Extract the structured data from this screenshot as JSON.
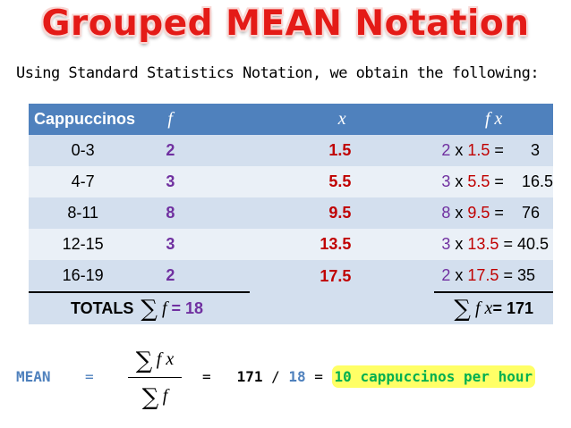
{
  "title": "Grouped MEAN Notation",
  "subtitle": "Using Standard Statistics Notation, we obtain the following:",
  "table": {
    "headers": {
      "cappuccinos": "Cappuccinos",
      "f": "f",
      "x": "x",
      "fx": "f x"
    },
    "rows": [
      {
        "range": "0-3",
        "f": "2",
        "x": "1.5",
        "fx_f": "2",
        "fx_op": " x ",
        "fx_x": "1.5",
        "fx_eq": " =      ",
        "fx_res": "3"
      },
      {
        "range": "4-7",
        "f": "3",
        "x": "5.5",
        "fx_f": "3",
        "fx_op": " x ",
        "fx_x": "5.5",
        "fx_eq": " =    ",
        "fx_res": "16.5"
      },
      {
        "range": "8-11",
        "f": "8",
        "x": "9.5",
        "fx_f": "8",
        "fx_op": " x ",
        "fx_x": "9.5",
        "fx_eq": " =    ",
        "fx_res": "76"
      },
      {
        "range": "12-15",
        "f": "3",
        "x": "13.5",
        "fx_f": "3",
        "fx_op": " x ",
        "fx_x": "13.5",
        "fx_eq": " = ",
        "fx_res": "40.5"
      },
      {
        "range": "16-19",
        "f": "2",
        "x": "17.5",
        "fx_f": "2",
        "fx_op": " x ",
        "fx_x": "17.5",
        "fx_eq": " = ",
        "fx_res": "35"
      }
    ],
    "totals": {
      "label": "TOTALS",
      "sigma": "∑",
      "f_symbol": "f",
      "f_eq": " = ",
      "f_total": "18",
      "fx_symbol": "f x",
      "fx_eq": "= ",
      "fx_total": "171"
    }
  },
  "mean": {
    "label": "MEAN",
    "eq": "=",
    "num_sigma": "∑",
    "num_expr": "f x",
    "den_sigma": "∑",
    "den_expr": "f",
    "eq2": "=",
    "numerator": "171",
    "slash": " / ",
    "denominator": "18",
    "eq3": " = ",
    "answer": "10 cappuccinos per hour"
  },
  "colors": {
    "title": "#e41b17",
    "header_bg": "#4f81bd",
    "row_dark": "#d3dfee",
    "row_light": "#eaf0f7",
    "f_values": "#7030a0",
    "x_values": "#c00000",
    "mean_label": "#4f81bd",
    "highlight_bg": "#ffff66",
    "highlight_text": "#00b050"
  }
}
